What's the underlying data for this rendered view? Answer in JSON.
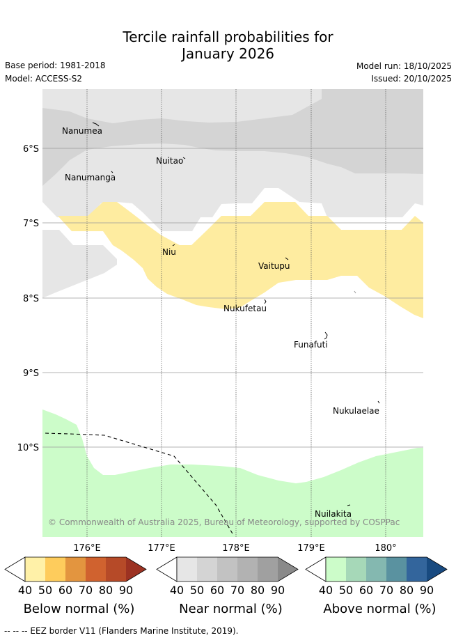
{
  "title_line1": "Tercile rainfall probabilities for",
  "title_line2": "January 2026",
  "base_period": "Base period: 1981-2018",
  "model": "Model: ACCESS-S2",
  "model_run": "Model run: 18/10/2025",
  "issued": "Issued: 20/10/2025",
  "lat_labels": [
    "6°S",
    "7°S",
    "8°S",
    "9°S",
    "10°S"
  ],
  "lon_labels": [
    "176°E",
    "177°E",
    "178°E",
    "179°E",
    "180°"
  ],
  "islands": [
    "Nanumea",
    "Nuitao",
    "Nanumanga",
    "Niu",
    "Vaitupu",
    "Nukufetau",
    "Funafuti",
    "Nukulaelae",
    "Nuilakita"
  ],
  "copyright": "© Commonwealth of Australia 2025, Bureau of Meteorology, supported by COSPPac",
  "colorbars": [
    {
      "title": "Below normal (%)",
      "ticks": [
        "40",
        "50",
        "60",
        "70",
        "80",
        "90"
      ],
      "colors": [
        "#fff1a8",
        "#fecc5c",
        "#e3953f",
        "#d0622f",
        "#b64a28",
        "#9c3222"
      ]
    },
    {
      "title": "Near normal (%)",
      "ticks": [
        "40",
        "50",
        "60",
        "70",
        "80",
        "90"
      ],
      "colors": [
        "#e6e6e6",
        "#d4d4d4",
        "#c2c2c2",
        "#b2b2b2",
        "#a0a0a0",
        "#8a8a8a"
      ]
    },
    {
      "title": "Above normal (%)",
      "ticks": [
        "40",
        "50",
        "60",
        "70",
        "80",
        "90"
      ],
      "colors": [
        "#ccfcc9",
        "#a6d8b8",
        "#84b8b0",
        "#5a92a0",
        "#33659c",
        "#184a80"
      ]
    }
  ],
  "footer": "--  --  -- EEZ border V11 (Flanders Marine Institute, 2019)."
}
